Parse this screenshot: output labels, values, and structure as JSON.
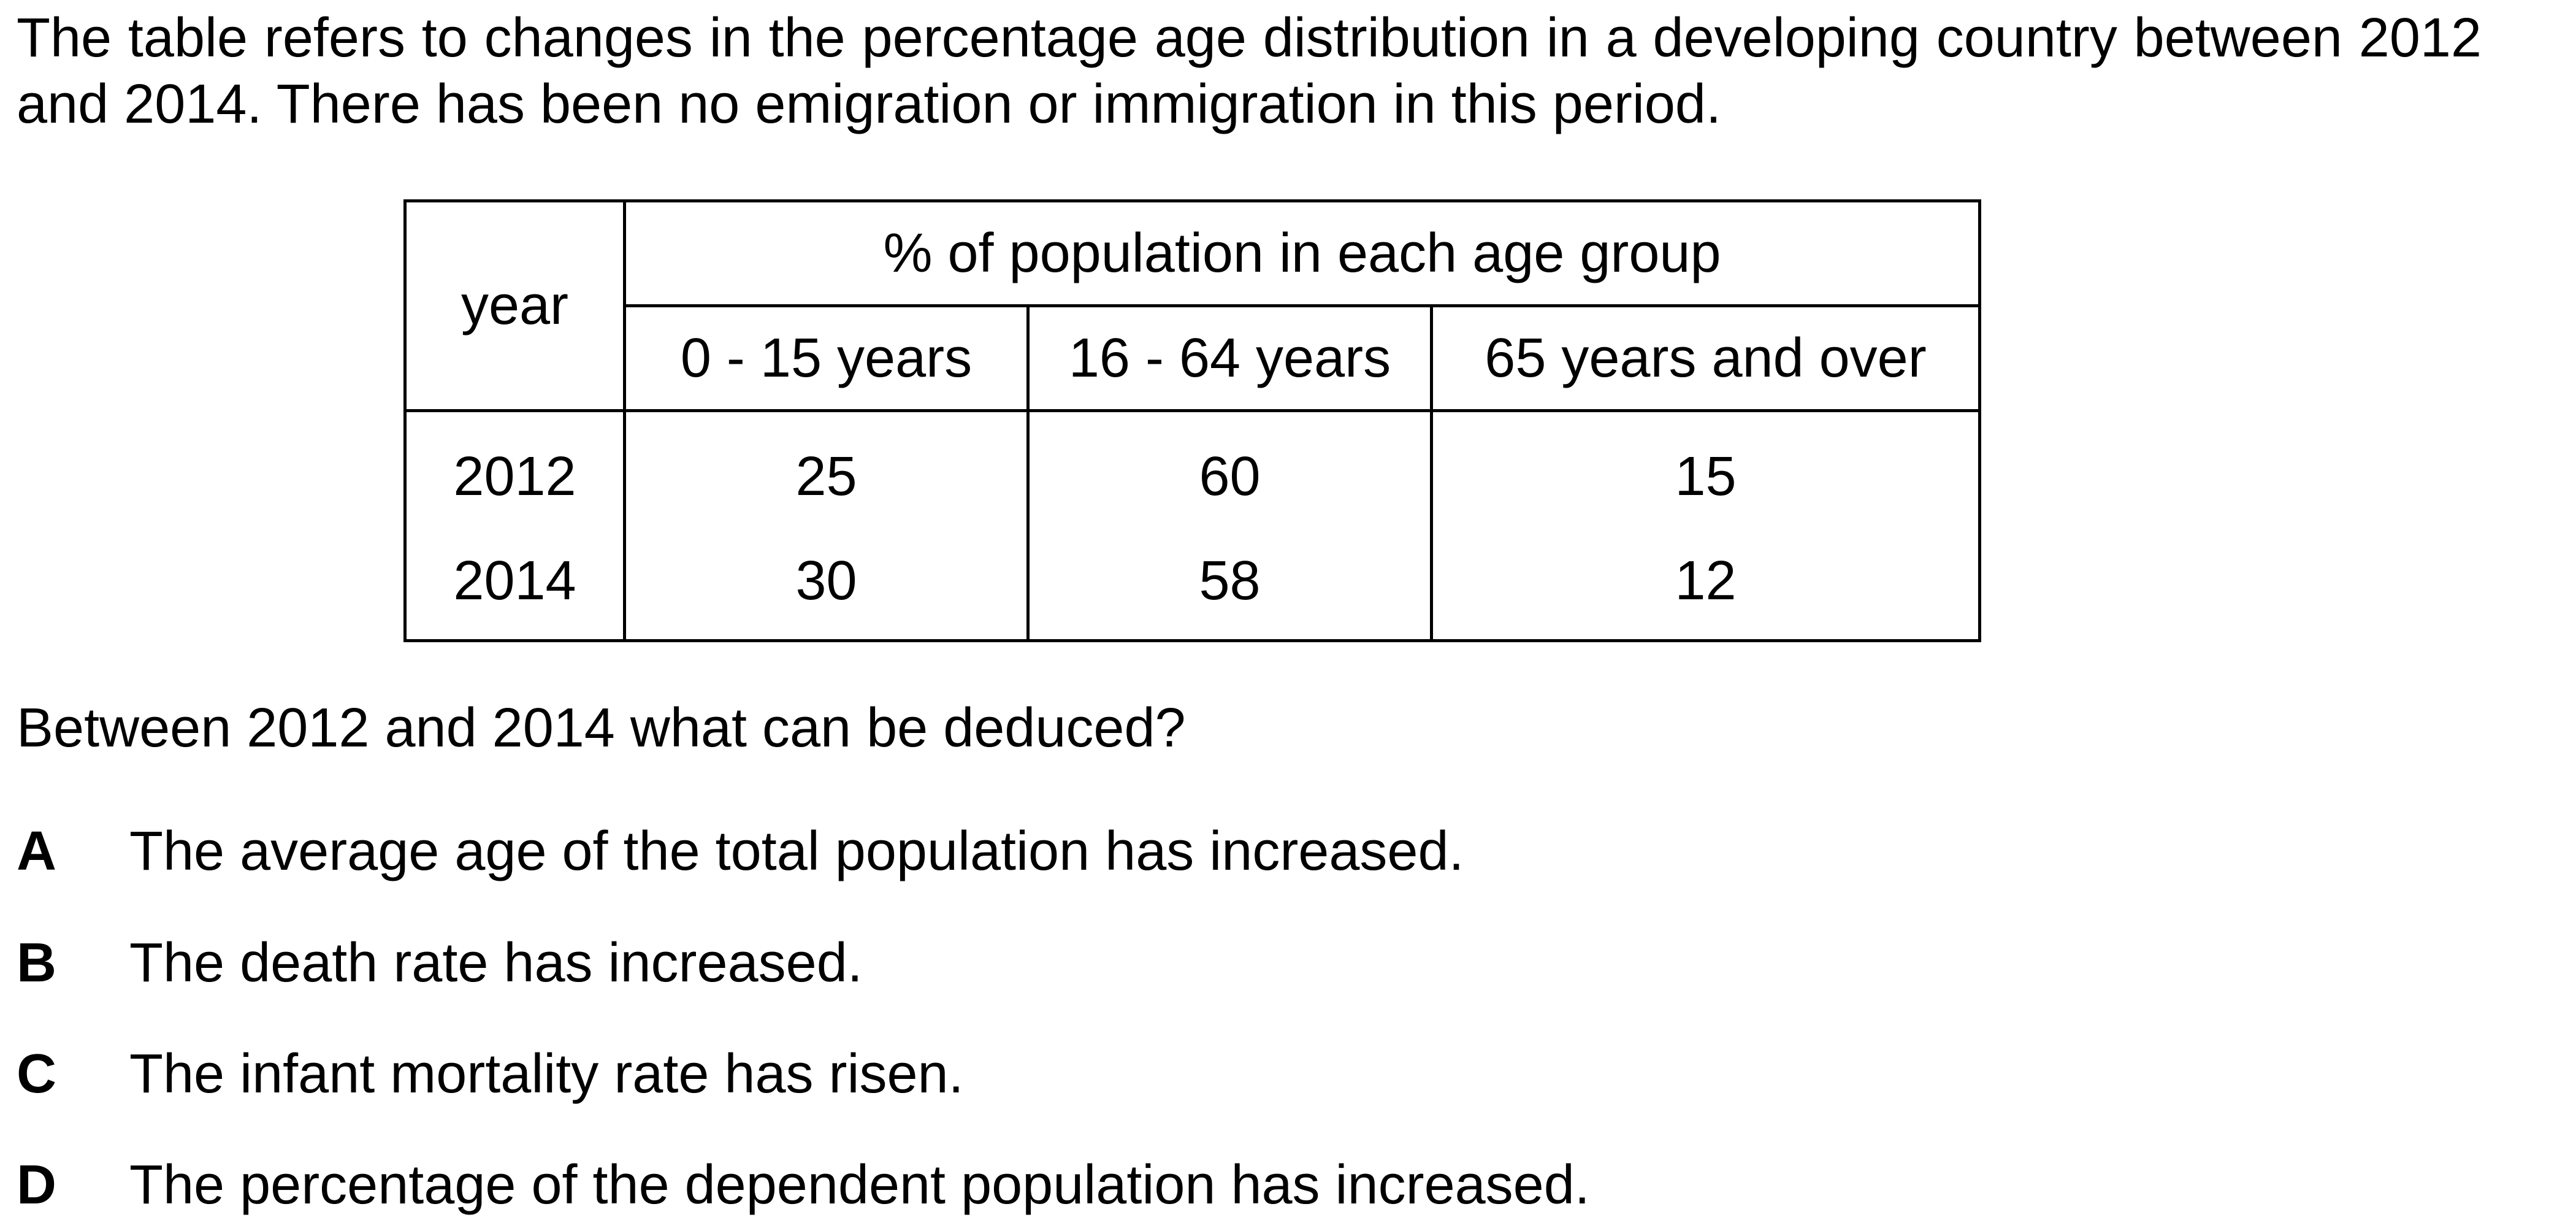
{
  "intro_text": "The table refers to changes in the percentage age distribution in a developing country between 2012 and 2014. There has been no emigration or immigration in this period.",
  "table": {
    "year_header": "year",
    "group_header": "% of population in each age group",
    "columns": [
      "0 - 15 years",
      "16 - 64 years",
      "65 years and over"
    ],
    "rows": [
      {
        "year": "2012",
        "values": [
          "25",
          "60",
          "15"
        ]
      },
      {
        "year": "2014",
        "values": [
          "30",
          "58",
          "12"
        ]
      }
    ]
  },
  "question": "Between 2012 and 2014 what can be deduced?",
  "options": [
    {
      "letter": "A",
      "text": "The average age of the total population has increased."
    },
    {
      "letter": "B",
      "text": "The death rate has increased."
    },
    {
      "letter": "C",
      "text": "The infant mortality rate has risen."
    },
    {
      "letter": "D",
      "text": "The percentage of the dependent population has increased."
    }
  ]
}
